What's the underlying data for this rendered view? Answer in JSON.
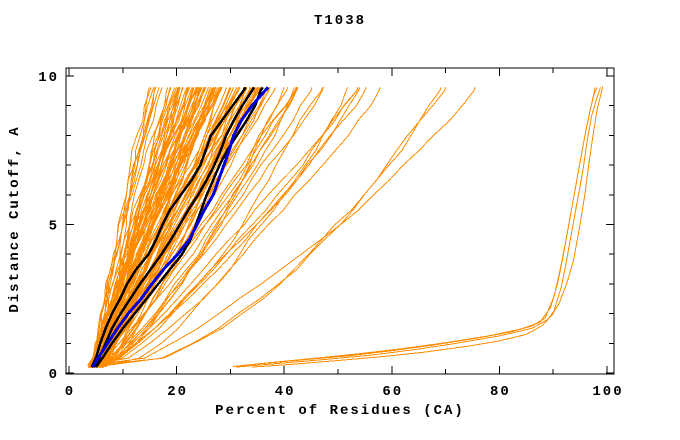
{
  "chart_data": {
    "type": "line",
    "title": "T1038",
    "xlabel": "Percent of Residues (CA)",
    "ylabel": "Distance Cutoff, A",
    "xlim": [
      0,
      100
    ],
    "ylim": [
      0,
      10
    ],
    "grid": false,
    "legend": "none",
    "x_ticks_major": [
      0,
      20,
      40,
      60,
      80,
      100
    ],
    "x_ticks_minor": [
      10,
      30,
      50,
      70,
      90
    ],
    "y_ticks_major": [
      0,
      5,
      10
    ],
    "y_ticks_minor": [
      1,
      2,
      3,
      4,
      6,
      7,
      8,
      9
    ],
    "colors": {
      "models_orange": "#ff8c00",
      "highlight_black": "#000000",
      "highlight_blue": "#0000dd",
      "frame": "#000000",
      "text": "#000000",
      "background": "#ffffff"
    },
    "series": [
      {
        "name": "predicted-models-fan",
        "description": "dense fan of server/model cumulative accuracy curves rising from ~5% at cutoff 0.2 and ending between ~14% and ~78% of residues at cutoff 9.6",
        "color_key": "models_orange",
        "line_width": 1,
        "count": 110,
        "seed": 20381,
        "start_percent_range": [
          3.5,
          7
        ],
        "end_percent_quantiles": [
          14,
          20,
          25,
          30,
          36,
          44,
          55,
          78
        ],
        "quantile_positions": [
          0,
          0.15,
          0.35,
          0.55,
          0.75,
          0.9,
          0.97,
          1
        ],
        "cutoff_step": 0.5,
        "cutoff_max": 9.5
      },
      {
        "name": "low-accuracy-models",
        "description": "small bundle of curves flat along the bottom that only rise near 90-99% of residues",
        "color_key": "models_orange",
        "line_width": 1,
        "curves": [
          [
            [
              30.5,
              0.22
            ],
            [
              36,
              0.32
            ],
            [
              44,
              0.45
            ],
            [
              52,
              0.58
            ],
            [
              60,
              0.75
            ],
            [
              68,
              0.95
            ],
            [
              76,
              1.18
            ],
            [
              82,
              1.38
            ],
            [
              86,
              1.58
            ],
            [
              88.5,
              1.85
            ],
            [
              90.2,
              2.6
            ],
            [
              91.2,
              3.4
            ],
            [
              92.2,
              4.3
            ],
            [
              93.2,
              5.3
            ],
            [
              94.2,
              6.3
            ],
            [
              95.2,
              7.3
            ],
            [
              96.2,
              8.3
            ],
            [
              97.2,
              9.1
            ],
            [
              97.8,
              9.62
            ]
          ],
          [
            [
              32,
              0.25
            ],
            [
              38,
              0.36
            ],
            [
              46,
              0.5
            ],
            [
              54,
              0.65
            ],
            [
              62,
              0.82
            ],
            [
              70,
              1.02
            ],
            [
              78,
              1.25
            ],
            [
              84,
              1.48
            ],
            [
              87.5,
              1.7
            ],
            [
              89.5,
              2.2
            ],
            [
              90.8,
              3.0
            ],
            [
              91.8,
              3.9
            ],
            [
              92.8,
              4.9
            ],
            [
              93.8,
              5.9
            ],
            [
              94.8,
              6.9
            ],
            [
              95.8,
              7.9
            ],
            [
              96.8,
              8.8
            ],
            [
              97.6,
              9.4
            ],
            [
              98.2,
              9.62
            ]
          ],
          [
            [
              34,
              0.2
            ],
            [
              42,
              0.3
            ],
            [
              50,
              0.42
            ],
            [
              58,
              0.55
            ],
            [
              66,
              0.7
            ],
            [
              74,
              0.9
            ],
            [
              80,
              1.08
            ],
            [
              85,
              1.3
            ],
            [
              88,
              1.6
            ],
            [
              90,
              2.0
            ],
            [
              91.5,
              2.9
            ],
            [
              92.5,
              3.8
            ],
            [
              93.5,
              4.8
            ],
            [
              94.5,
              5.8
            ],
            [
              95.5,
              6.8
            ],
            [
              96.3,
              7.8
            ],
            [
              97.2,
              8.7
            ],
            [
              98.2,
              9.3
            ],
            [
              98.8,
              9.62
            ]
          ],
          [
            [
              31,
              0.2
            ],
            [
              40,
              0.34
            ],
            [
              48,
              0.46
            ],
            [
              56,
              0.6
            ],
            [
              64,
              0.78
            ],
            [
              72,
              1.0
            ],
            [
              80,
              1.25
            ],
            [
              86,
              1.5
            ],
            [
              89,
              1.8
            ],
            [
              91,
              2.3
            ],
            [
              92.5,
              3.0
            ],
            [
              93.8,
              3.8
            ],
            [
              94.8,
              4.8
            ],
            [
              95.8,
              5.9
            ],
            [
              96.6,
              7.0
            ],
            [
              97.4,
              8.0
            ],
            [
              98.2,
              8.9
            ],
            [
              98.9,
              9.4
            ],
            [
              99.2,
              9.65
            ]
          ]
        ]
      },
      {
        "name": "highlight-black-1",
        "color_key": "highlight_black",
        "line_width": 2.5,
        "points": [
          [
            4.2,
            0.2
          ],
          [
            5,
            0.5
          ],
          [
            5.8,
            1
          ],
          [
            6.8,
            1.5
          ],
          [
            8,
            2
          ],
          [
            9.5,
            2.5
          ],
          [
            10.8,
            3
          ],
          [
            12.5,
            3.5
          ],
          [
            14.8,
            4
          ],
          [
            16.2,
            4.5
          ],
          [
            17.4,
            5
          ],
          [
            18.8,
            5.5
          ],
          [
            20.8,
            6
          ],
          [
            22.8,
            6.5
          ],
          [
            24.4,
            7
          ],
          [
            25.4,
            7.5
          ],
          [
            26.4,
            8
          ],
          [
            28.4,
            8.5
          ],
          [
            30.4,
            9
          ],
          [
            32.4,
            9.5
          ],
          [
            32.8,
            9.62
          ]
        ]
      },
      {
        "name": "highlight-black-2",
        "color_key": "highlight_black",
        "line_width": 2.5,
        "points": [
          [
            4.6,
            0.2
          ],
          [
            5.6,
            0.5
          ],
          [
            6.8,
            1
          ],
          [
            8,
            1.5
          ],
          [
            9.6,
            2
          ],
          [
            11.4,
            2.5
          ],
          [
            13.2,
            3
          ],
          [
            15.2,
            3.5
          ],
          [
            17.2,
            4
          ],
          [
            19,
            4.5
          ],
          [
            20.6,
            5
          ],
          [
            22.2,
            5.5
          ],
          [
            24,
            6
          ],
          [
            25.6,
            6.5
          ],
          [
            27,
            7
          ],
          [
            28.2,
            7.5
          ],
          [
            29.2,
            8
          ],
          [
            30.6,
            8.5
          ],
          [
            32.2,
            9
          ],
          [
            34,
            9.5
          ],
          [
            34.4,
            9.62
          ]
        ]
      },
      {
        "name": "highlight-black-3",
        "color_key": "highlight_black",
        "line_width": 2.5,
        "points": [
          [
            5,
            0.2
          ],
          [
            6.2,
            0.5
          ],
          [
            8,
            1
          ],
          [
            10,
            1.5
          ],
          [
            12.2,
            2
          ],
          [
            14.4,
            2.5
          ],
          [
            16.6,
            3
          ],
          [
            18.8,
            3.5
          ],
          [
            21,
            4
          ],
          [
            22.6,
            4.5
          ],
          [
            23.6,
            5
          ],
          [
            24.6,
            5.5
          ],
          [
            25.6,
            6
          ],
          [
            26.8,
            6.5
          ],
          [
            28,
            7
          ],
          [
            29.4,
            7.5
          ],
          [
            31.2,
            8
          ],
          [
            33,
            8.5
          ],
          [
            34.6,
            9
          ],
          [
            35.6,
            9.5
          ],
          [
            36,
            9.62
          ]
        ]
      },
      {
        "name": "highlight-blue",
        "color_key": "highlight_blue",
        "line_width": 3,
        "points": [
          [
            4.4,
            0.2
          ],
          [
            5.4,
            0.5
          ],
          [
            7.2,
            1
          ],
          [
            9,
            1.5
          ],
          [
            11,
            2
          ],
          [
            13.4,
            2.5
          ],
          [
            15.4,
            3
          ],
          [
            17.6,
            3.5
          ],
          [
            20.2,
            4
          ],
          [
            22.4,
            4.5
          ],
          [
            23.8,
            5
          ],
          [
            25.2,
            5.5
          ],
          [
            26.8,
            6
          ],
          [
            27.8,
            6.5
          ],
          [
            28.8,
            7
          ],
          [
            29.8,
            7.5
          ],
          [
            30.6,
            8
          ],
          [
            32,
            8.5
          ],
          [
            34,
            9
          ],
          [
            36.4,
            9.5
          ],
          [
            37,
            9.62
          ]
        ]
      }
    ]
  }
}
